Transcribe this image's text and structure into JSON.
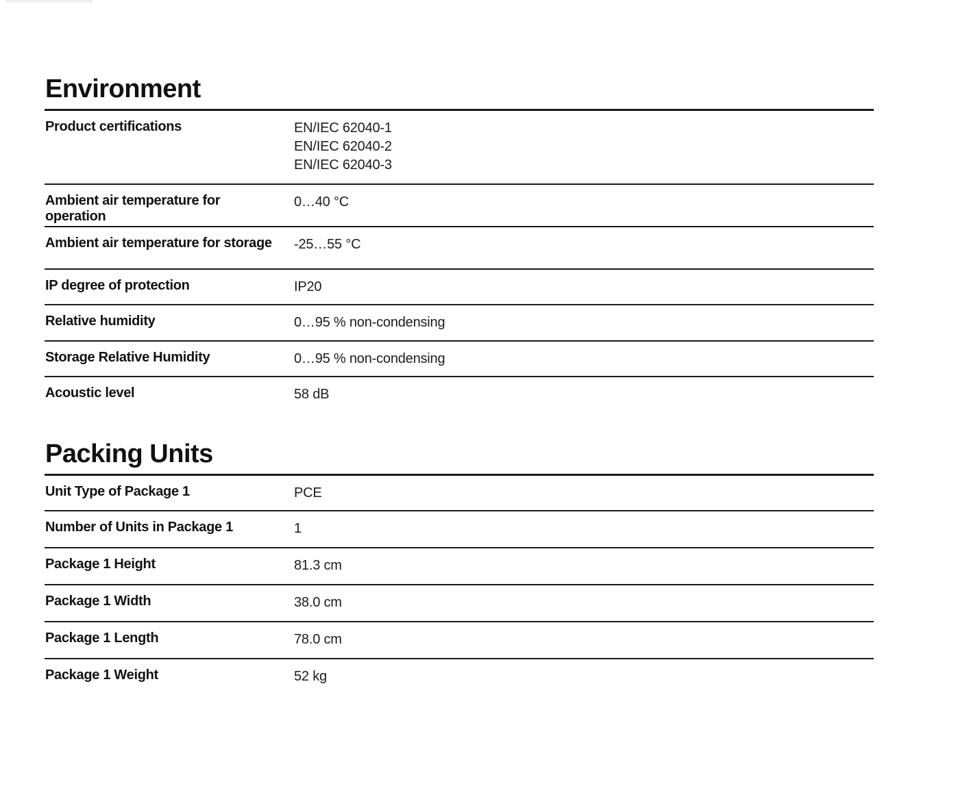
{
  "page": {
    "background": "#ffffff",
    "text_color": "#161616",
    "rule_color": "#1a1a1a",
    "artifact_bar_color": "#e9e9ee"
  },
  "sections": [
    {
      "title": "Environment",
      "rows": [
        {
          "label": "Product certifications",
          "values": [
            "EN/IEC 62040-1",
            "EN/IEC 62040-2",
            "EN/IEC 62040-3"
          ]
        },
        {
          "label": "Ambient air temperature for operation",
          "values": [
            "0…40 °C"
          ]
        },
        {
          "label": "Ambient air temperature for storage",
          "values": [
            "-25…55 °C"
          ]
        },
        {
          "label": "IP degree of protection",
          "values": [
            "IP20"
          ]
        },
        {
          "label": "Relative humidity",
          "values": [
            "0…95 % non-condensing"
          ]
        },
        {
          "label": "Storage Relative Humidity",
          "values": [
            "0…95 % non-condensing"
          ]
        },
        {
          "label": "Acoustic level",
          "values": [
            "58 dB"
          ]
        }
      ]
    },
    {
      "title": "Packing Units",
      "rows": [
        {
          "label": "Unit Type of Package 1",
          "values": [
            "PCE"
          ]
        },
        {
          "label": "Number of Units in Package 1",
          "values": [
            "1"
          ]
        },
        {
          "label": "Package 1 Height",
          "values": [
            "81.3 cm"
          ]
        },
        {
          "label": "Package 1 Width",
          "values": [
            "38.0 cm"
          ]
        },
        {
          "label": "Package 1 Length",
          "values": [
            "78.0 cm"
          ]
        },
        {
          "label": "Package 1 Weight",
          "values": [
            "52 kg"
          ]
        }
      ]
    }
  ]
}
